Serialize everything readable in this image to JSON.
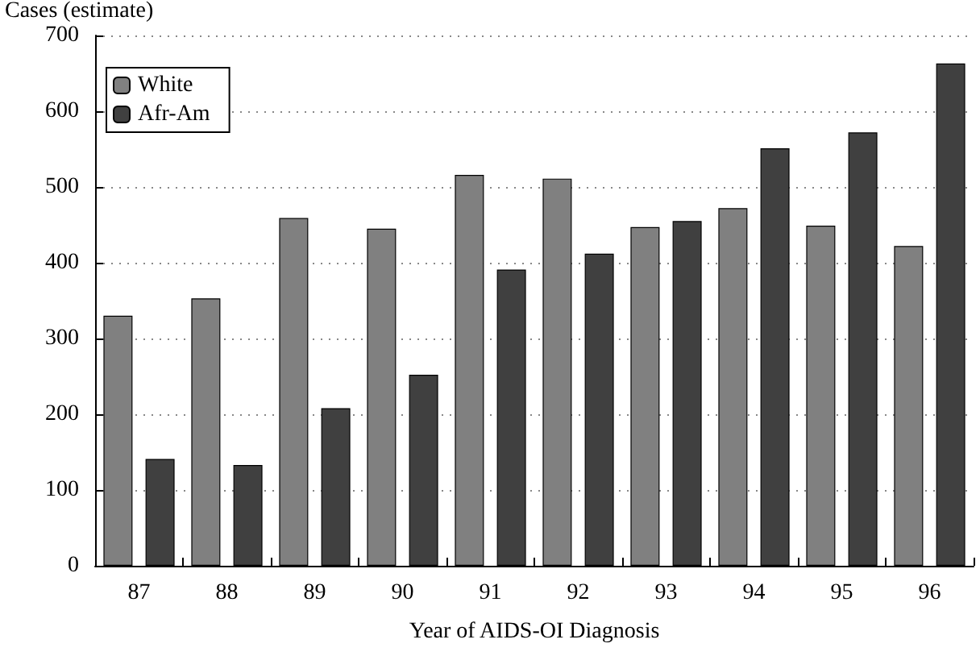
{
  "chart_data": {
    "type": "bar",
    "xlabel": "Year of AIDS-OI Diagnosis",
    "ylabel": "Cases (estimate)",
    "categories": [
      "87",
      "88",
      "89",
      "90",
      "91",
      "92",
      "93",
      "94",
      "95",
      "96"
    ],
    "series": [
      {
        "name": "White",
        "color": "#808080",
        "values": [
          330,
          353,
          459,
          445,
          516,
          511,
          447,
          472,
          449,
          422
        ]
      },
      {
        "name": "Afr-Am",
        "color": "#404040",
        "values": [
          141,
          133,
          208,
          252,
          391,
          412,
          455,
          551,
          572,
          663
        ]
      }
    ],
    "ylim": [
      0,
      700
    ],
    "yticks": [
      0,
      100,
      200,
      300,
      400,
      500,
      600,
      700
    ],
    "grid": "y",
    "legend": "top left"
  }
}
